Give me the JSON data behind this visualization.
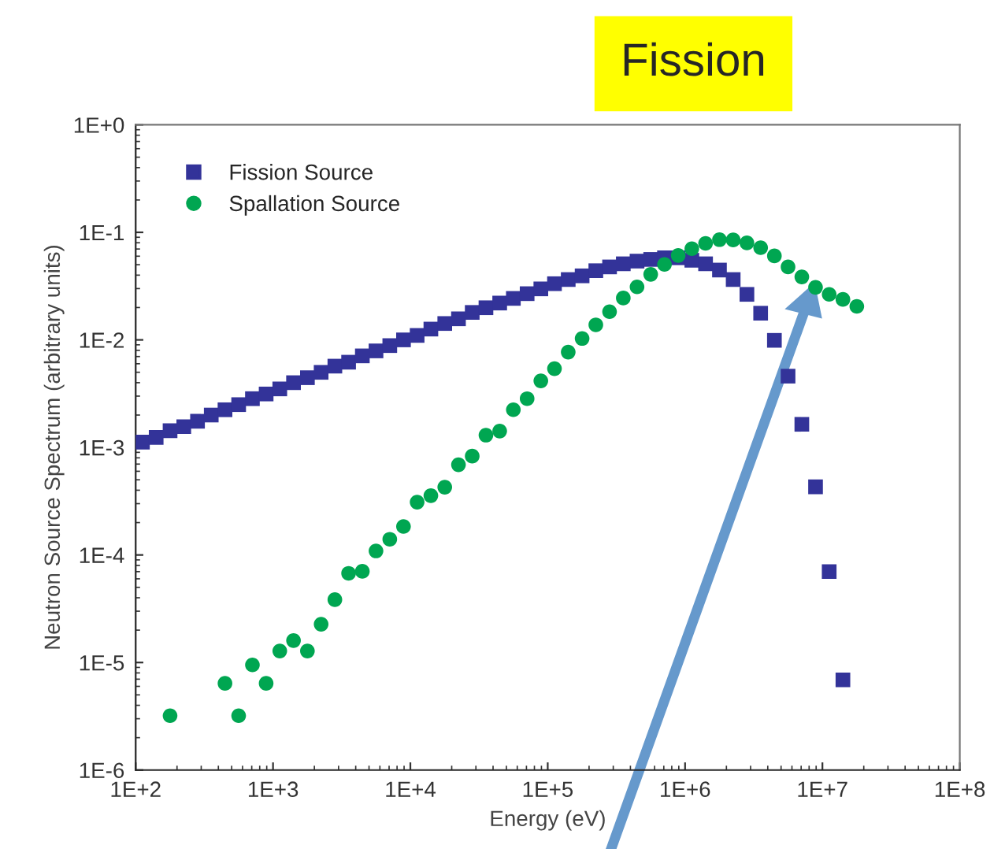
{
  "chart_data": {
    "type": "scatter",
    "title": "Fission",
    "xlabel": "Energy (eV)",
    "ylabel": "Neutron Source Spectrum (arbitrary units)",
    "log": "xy",
    "legend": "top left",
    "grid": false,
    "xlim": [
      100,
      100000000
    ],
    "ylim": [
      1e-06,
      1
    ],
    "xticks": [
      {
        "value": 100,
        "label": "1E+2"
      },
      {
        "value": 1000,
        "label": "1E+3"
      },
      {
        "value": 10000,
        "label": "1E+4"
      },
      {
        "value": 100000,
        "label": "1E+5"
      },
      {
        "value": 1000000,
        "label": "1E+6"
      },
      {
        "value": 10000000,
        "label": "1E+7"
      },
      {
        "value": 100000000,
        "label": "1E+8"
      }
    ],
    "yticks": [
      {
        "value": 1e-06,
        "label": "1E-6"
      },
      {
        "value": 1e-05,
        "label": "1E-5"
      },
      {
        "value": 0.0001,
        "label": "1E-4"
      },
      {
        "value": 0.001,
        "label": "1E-3"
      },
      {
        "value": 0.01,
        "label": "1E-2"
      },
      {
        "value": 0.1,
        "label": "1E-1"
      },
      {
        "value": 1,
        "label": "1E+0"
      }
    ],
    "series": [
      {
        "name": "Fission Source",
        "color": "#333399",
        "marker": "square",
        "x": [
          112,
          141,
          178,
          224,
          282,
          355,
          447,
          562,
          708,
          891,
          1120,
          1410,
          1780,
          2240,
          2820,
          3550,
          4470,
          5620,
          7080,
          8910,
          11200,
          14100,
          17800,
          22400,
          28200,
          35500,
          44700,
          56200,
          70800,
          89100,
          112000,
          141000,
          178000,
          224000,
          282000,
          355000,
          447000,
          562000,
          708000,
          891000,
          1120000,
          1410000,
          1780000,
          2240000,
          2820000,
          3550000,
          4470000,
          5620000,
          7080000,
          8910000,
          11200000,
          14100000
        ],
        "values": [
          0.00112,
          0.00124,
          0.00143,
          0.00156,
          0.00175,
          0.002,
          0.00224,
          0.0025,
          0.00284,
          0.00314,
          0.0035,
          0.004,
          0.00445,
          0.00499,
          0.0057,
          0.0062,
          0.0071,
          0.0079,
          0.00885,
          0.01,
          0.011,
          0.0126,
          0.0142,
          0.0157,
          0.018,
          0.0199,
          0.022,
          0.0243,
          0.0269,
          0.0298,
          0.0333,
          0.0364,
          0.0394,
          0.044,
          0.0477,
          0.051,
          0.054,
          0.056,
          0.058,
          0.058,
          0.055,
          0.051,
          0.0446,
          0.0364,
          0.0265,
          0.0177,
          0.0099,
          0.0046,
          0.00164,
          0.00043,
          7e-05,
          6.9e-06
        ]
      },
      {
        "name": "Spallation Source",
        "color": "#00a651",
        "marker": "circle",
        "x": [
          178,
          447,
          562,
          708,
          891,
          1120,
          1410,
          1780,
          2240,
          2820,
          3550,
          4470,
          5620,
          7080,
          8910,
          11200,
          14100,
          17800,
          22400,
          28200,
          35500,
          44700,
          56200,
          70800,
          89100,
          112000,
          141000,
          178000,
          224000,
          282000,
          355000,
          447000,
          562000,
          708000,
          891000,
          1120000,
          1410000,
          1780000,
          2240000,
          2820000,
          3550000,
          4470000,
          5620000,
          7080000,
          8910000,
          11200000,
          14100000,
          17800000
        ],
        "values": [
          3.2e-06,
          6.4e-06,
          3.2e-06,
          9.5e-06,
          6.4e-06,
          1.28e-05,
          1.6e-05,
          1.28e-05,
          2.27e-05,
          3.84e-05,
          6.75e-05,
          7.05e-05,
          0.000109,
          0.00014,
          0.000184,
          0.00031,
          0.000356,
          0.000427,
          0.00069,
          0.00083,
          0.0013,
          0.00142,
          0.00224,
          0.00284,
          0.00416,
          0.0054,
          0.0077,
          0.0103,
          0.0138,
          0.0183,
          0.0245,
          0.0311,
          0.0407,
          0.0503,
          0.061,
          0.0705,
          0.079,
          0.0855,
          0.085,
          0.0798,
          0.072,
          0.0604,
          0.0477,
          0.0385,
          0.0308,
          0.0265,
          0.0238,
          0.0205
        ]
      }
    ]
  }
}
